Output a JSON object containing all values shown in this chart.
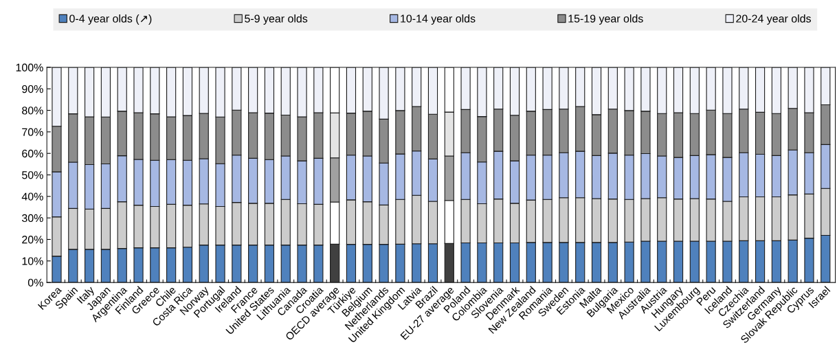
{
  "chart_data": {
    "type": "bar",
    "stacked": true,
    "legend": "top",
    "grid": false,
    "categories": [
      "Korea",
      "Spain",
      "Italy",
      "Japan",
      "Argentina",
      "Finland",
      "Greece",
      "Chile",
      "Costa Rica",
      "Norway",
      "Portugal",
      "Ireland",
      "France",
      "United States",
      "Lithuania",
      "Canada",
      "Croatia",
      "OECD average",
      "Türkiye",
      "Belgium",
      "Netherlands",
      "United Kingdom",
      "Latvia",
      "Brazil",
      "EU-27 average",
      "Poland",
      "Colombia",
      "Slovenia",
      "Denmark",
      "New Zealand",
      "Romania",
      "Sweden",
      "Estonia",
      "Malta",
      "Bulgaria",
      "Mexico",
      "Australia",
      "Austria",
      "Hungary",
      "Luxembourg",
      "Peru",
      "Iceland",
      "Czechia",
      "Switzerland",
      "Germany",
      "Slovak Republic",
      "Cyprus",
      "Israel"
    ],
    "ylim": [
      0,
      100
    ],
    "yticks": [
      {
        "value": 0,
        "label": "0%"
      },
      {
        "value": 10,
        "label": "10%"
      },
      {
        "value": 20,
        "label": "20%"
      },
      {
        "value": 30,
        "label": "30%"
      },
      {
        "value": 40,
        "label": "40%"
      },
      {
        "value": 50,
        "label": "50%"
      },
      {
        "value": 60,
        "label": "60%"
      },
      {
        "value": 70,
        "label": "70%"
      },
      {
        "value": 80,
        "label": "80%"
      },
      {
        "value": 90,
        "label": "90%"
      },
      {
        "value": 100,
        "label": "100%"
      }
    ],
    "series": [
      {
        "name": "0-4 year olds (↗)",
        "color": "#4f81bd",
        "colors": [
          "#4f81bd",
          "#4f81bd",
          "#4f81bd",
          "#4f81bd",
          "#4f81bd",
          "#4f81bd",
          "#4f81bd",
          "#4f81bd",
          "#4f81bd",
          "#4f81bd",
          "#4f81bd",
          "#4f81bd",
          "#4f81bd",
          "#4f81bd",
          "#4f81bd",
          "#4f81bd",
          "#4f81bd",
          "#404040",
          "#4f81bd",
          "#4f81bd",
          "#4f81bd",
          "#4f81bd",
          "#4f81bd",
          "#4f81bd",
          "#404040",
          "#4f81bd",
          "#4f81bd",
          "#4f81bd",
          "#4f81bd",
          "#4f81bd",
          "#4f81bd",
          "#4f81bd",
          "#4f81bd",
          "#4f81bd",
          "#4f81bd",
          "#4f81bd",
          "#4f81bd",
          "#4f81bd",
          "#4f81bd",
          "#4f81bd",
          "#4f81bd",
          "#4f81bd",
          "#4f81bd",
          "#4f81bd",
          "#4f81bd",
          "#4f81bd",
          "#4f81bd",
          "#4f81bd"
        ],
        "values": [
          12.2,
          15.4,
          15.4,
          15.4,
          15.8,
          16.1,
          16.1,
          16.1,
          16.4,
          17.4,
          17.4,
          17.4,
          17.4,
          17.4,
          17.4,
          17.4,
          17.4,
          17.8,
          17.7,
          17.7,
          17.7,
          17.8,
          18.0,
          18.0,
          18.1,
          18.4,
          18.4,
          18.4,
          18.4,
          18.6,
          18.6,
          18.6,
          18.6,
          18.6,
          18.6,
          18.8,
          19.2,
          19.2,
          19.2,
          19.2,
          19.2,
          19.2,
          19.4,
          19.4,
          19.4,
          19.7,
          20.6,
          21.9
        ]
      },
      {
        "name": "5-9 year olds",
        "color": "#cccccc",
        "colors": [
          "#cccccc",
          "#cccccc",
          "#cccccc",
          "#cccccc",
          "#cccccc",
          "#cccccc",
          "#cccccc",
          "#cccccc",
          "#cccccc",
          "#cccccc",
          "#cccccc",
          "#cccccc",
          "#cccccc",
          "#cccccc",
          "#cccccc",
          "#cccccc",
          "#cccccc",
          "#ffffff",
          "#cccccc",
          "#cccccc",
          "#cccccc",
          "#cccccc",
          "#cccccc",
          "#cccccc",
          "#ffffff",
          "#cccccc",
          "#cccccc",
          "#cccccc",
          "#cccccc",
          "#cccccc",
          "#cccccc",
          "#cccccc",
          "#cccccc",
          "#cccccc",
          "#cccccc",
          "#cccccc",
          "#cccccc",
          "#cccccc",
          "#cccccc",
          "#cccccc",
          "#cccccc",
          "#cccccc",
          "#cccccc",
          "#cccccc",
          "#cccccc",
          "#cccccc",
          "#cccccc",
          "#cccccc"
        ],
        "values": [
          18.3,
          19.0,
          18.7,
          19.0,
          21.7,
          19.8,
          19.2,
          20.2,
          19.5,
          19.1,
          17.9,
          19.8,
          19.4,
          19.4,
          21.2,
          19.2,
          18.9,
          19.6,
          20.7,
          19.8,
          18.3,
          20.8,
          22.5,
          19.7,
          20.0,
          20.2,
          18.2,
          20.4,
          18.4,
          19.7,
          20.0,
          20.8,
          20.8,
          20.4,
          20.2,
          19.8,
          19.8,
          20.2,
          19.6,
          19.8,
          19.6,
          18.5,
          20.4,
          20.4,
          20.4,
          21.0,
          20.5,
          21.8
        ]
      },
      {
        "name": "10-14 year olds",
        "color": "#a6b8e3",
        "colors": [
          "#a6b8e3",
          "#a6b8e3",
          "#a6b8e3",
          "#a6b8e3",
          "#a6b8e3",
          "#a6b8e3",
          "#a6b8e3",
          "#a6b8e3",
          "#a6b8e3",
          "#a6b8e3",
          "#a6b8e3",
          "#a6b8e3",
          "#a6b8e3",
          "#a6b8e3",
          "#a6b8e3",
          "#a6b8e3",
          "#a6b8e3",
          "#a0a0a0",
          "#a6b8e3",
          "#a6b8e3",
          "#a6b8e3",
          "#a6b8e3",
          "#a6b8e3",
          "#a6b8e3",
          "#a0a0a0",
          "#a6b8e3",
          "#a6b8e3",
          "#a6b8e3",
          "#a6b8e3",
          "#a6b8e3",
          "#a6b8e3",
          "#a6b8e3",
          "#a6b8e3",
          "#a6b8e3",
          "#a6b8e3",
          "#a6b8e3",
          "#a6b8e3",
          "#a6b8e3",
          "#a6b8e3",
          "#a6b8e3",
          "#a6b8e3",
          "#a6b8e3",
          "#a6b8e3",
          "#a6b8e3",
          "#a6b8e3",
          "#a6b8e3",
          "#a6b8e3",
          "#a6b8e3"
        ],
        "values": [
          20.9,
          21.5,
          20.7,
          20.7,
          21.4,
          21.3,
          21.5,
          20.8,
          20.9,
          21.0,
          19.9,
          22.0,
          20.9,
          20.3,
          20.2,
          19.9,
          21.4,
          20.5,
          20.8,
          21.3,
          19.5,
          21.1,
          20.6,
          19.7,
          20.7,
          21.7,
          19.4,
          22.2,
          19.7,
          20.9,
          20.6,
          20.9,
          21.6,
          20.0,
          21.3,
          20.6,
          20.9,
          19.4,
          19.3,
          20.0,
          20.6,
          20.4,
          20.5,
          19.8,
          19.2,
          20.9,
          19.2,
          20.4
        ]
      },
      {
        "name": "15-19 year olds",
        "color": "#8c8c8c",
        "colors": [
          "#8c8c8c",
          "#8c8c8c",
          "#8c8c8c",
          "#8c8c8c",
          "#8c8c8c",
          "#8c8c8c",
          "#8c8c8c",
          "#8c8c8c",
          "#8c8c8c",
          "#8c8c8c",
          "#8c8c8c",
          "#8c8c8c",
          "#8c8c8c",
          "#8c8c8c",
          "#8c8c8c",
          "#8c8c8c",
          "#8c8c8c",
          "#e4e4e4",
          "#8c8c8c",
          "#8c8c8c",
          "#8c8c8c",
          "#8c8c8c",
          "#8c8c8c",
          "#8c8c8c",
          "#e4e4e4",
          "#8c8c8c",
          "#8c8c8c",
          "#8c8c8c",
          "#8c8c8c",
          "#8c8c8c",
          "#8c8c8c",
          "#8c8c8c",
          "#8c8c8c",
          "#8c8c8c",
          "#8c8c8c",
          "#8c8c8c",
          "#8c8c8c",
          "#8c8c8c",
          "#8c8c8c",
          "#8c8c8c",
          "#8c8c8c",
          "#8c8c8c",
          "#8c8c8c",
          "#8c8c8c",
          "#8c8c8c",
          "#8c8c8c",
          "#8c8c8c",
          "#8c8c8c"
        ],
        "values": [
          21.2,
          22.5,
          22.2,
          21.8,
          20.7,
          21.7,
          21.6,
          19.9,
          20.8,
          21.1,
          21.7,
          20.9,
          21.2,
          21.6,
          19.0,
          20.5,
          21.2,
          20.9,
          19.5,
          20.8,
          20.4,
          20.2,
          20.7,
          20.8,
          20.4,
          20.1,
          21.1,
          19.6,
          21.2,
          20.4,
          21.2,
          20.3,
          20.8,
          19.0,
          20.5,
          20.7,
          19.7,
          19.7,
          20.8,
          19.5,
          20.7,
          20.4,
          20.3,
          19.5,
          19.5,
          19.3,
          18.6,
          18.5
        ]
      },
      {
        "name": "20-24 year olds",
        "color": "#eef0f8",
        "colors": [
          "#eef0f8",
          "#eef0f8",
          "#eef0f8",
          "#eef0f8",
          "#eef0f8",
          "#eef0f8",
          "#eef0f8",
          "#eef0f8",
          "#eef0f8",
          "#eef0f8",
          "#eef0f8",
          "#eef0f8",
          "#eef0f8",
          "#eef0f8",
          "#eef0f8",
          "#eef0f8",
          "#eef0f8",
          "#ffffff",
          "#eef0f8",
          "#eef0f8",
          "#eef0f8",
          "#eef0f8",
          "#eef0f8",
          "#eef0f8",
          "#ffffff",
          "#eef0f8",
          "#eef0f8",
          "#eef0f8",
          "#eef0f8",
          "#eef0f8",
          "#eef0f8",
          "#eef0f8",
          "#eef0f8",
          "#eef0f8",
          "#eef0f8",
          "#eef0f8",
          "#eef0f8",
          "#eef0f8",
          "#eef0f8",
          "#eef0f8",
          "#eef0f8",
          "#eef0f8",
          "#eef0f8",
          "#eef0f8",
          "#eef0f8",
          "#eef0f8",
          "#eef0f8",
          "#eef0f8"
        ],
        "values": [
          27.4,
          21.6,
          23.0,
          23.1,
          20.4,
          21.1,
          21.6,
          23.0,
          22.4,
          21.4,
          23.1,
          19.9,
          21.1,
          21.3,
          22.2,
          23.0,
          21.1,
          21.2,
          21.3,
          20.4,
          24.1,
          20.1,
          18.2,
          21.8,
          20.8,
          19.6,
          22.9,
          19.4,
          22.3,
          20.4,
          19.6,
          19.4,
          18.2,
          22.0,
          19.4,
          20.1,
          20.4,
          21.5,
          21.1,
          21.5,
          19.9,
          21.5,
          19.4,
          20.9,
          21.5,
          19.1,
          21.1,
          17.4
        ]
      }
    ]
  }
}
